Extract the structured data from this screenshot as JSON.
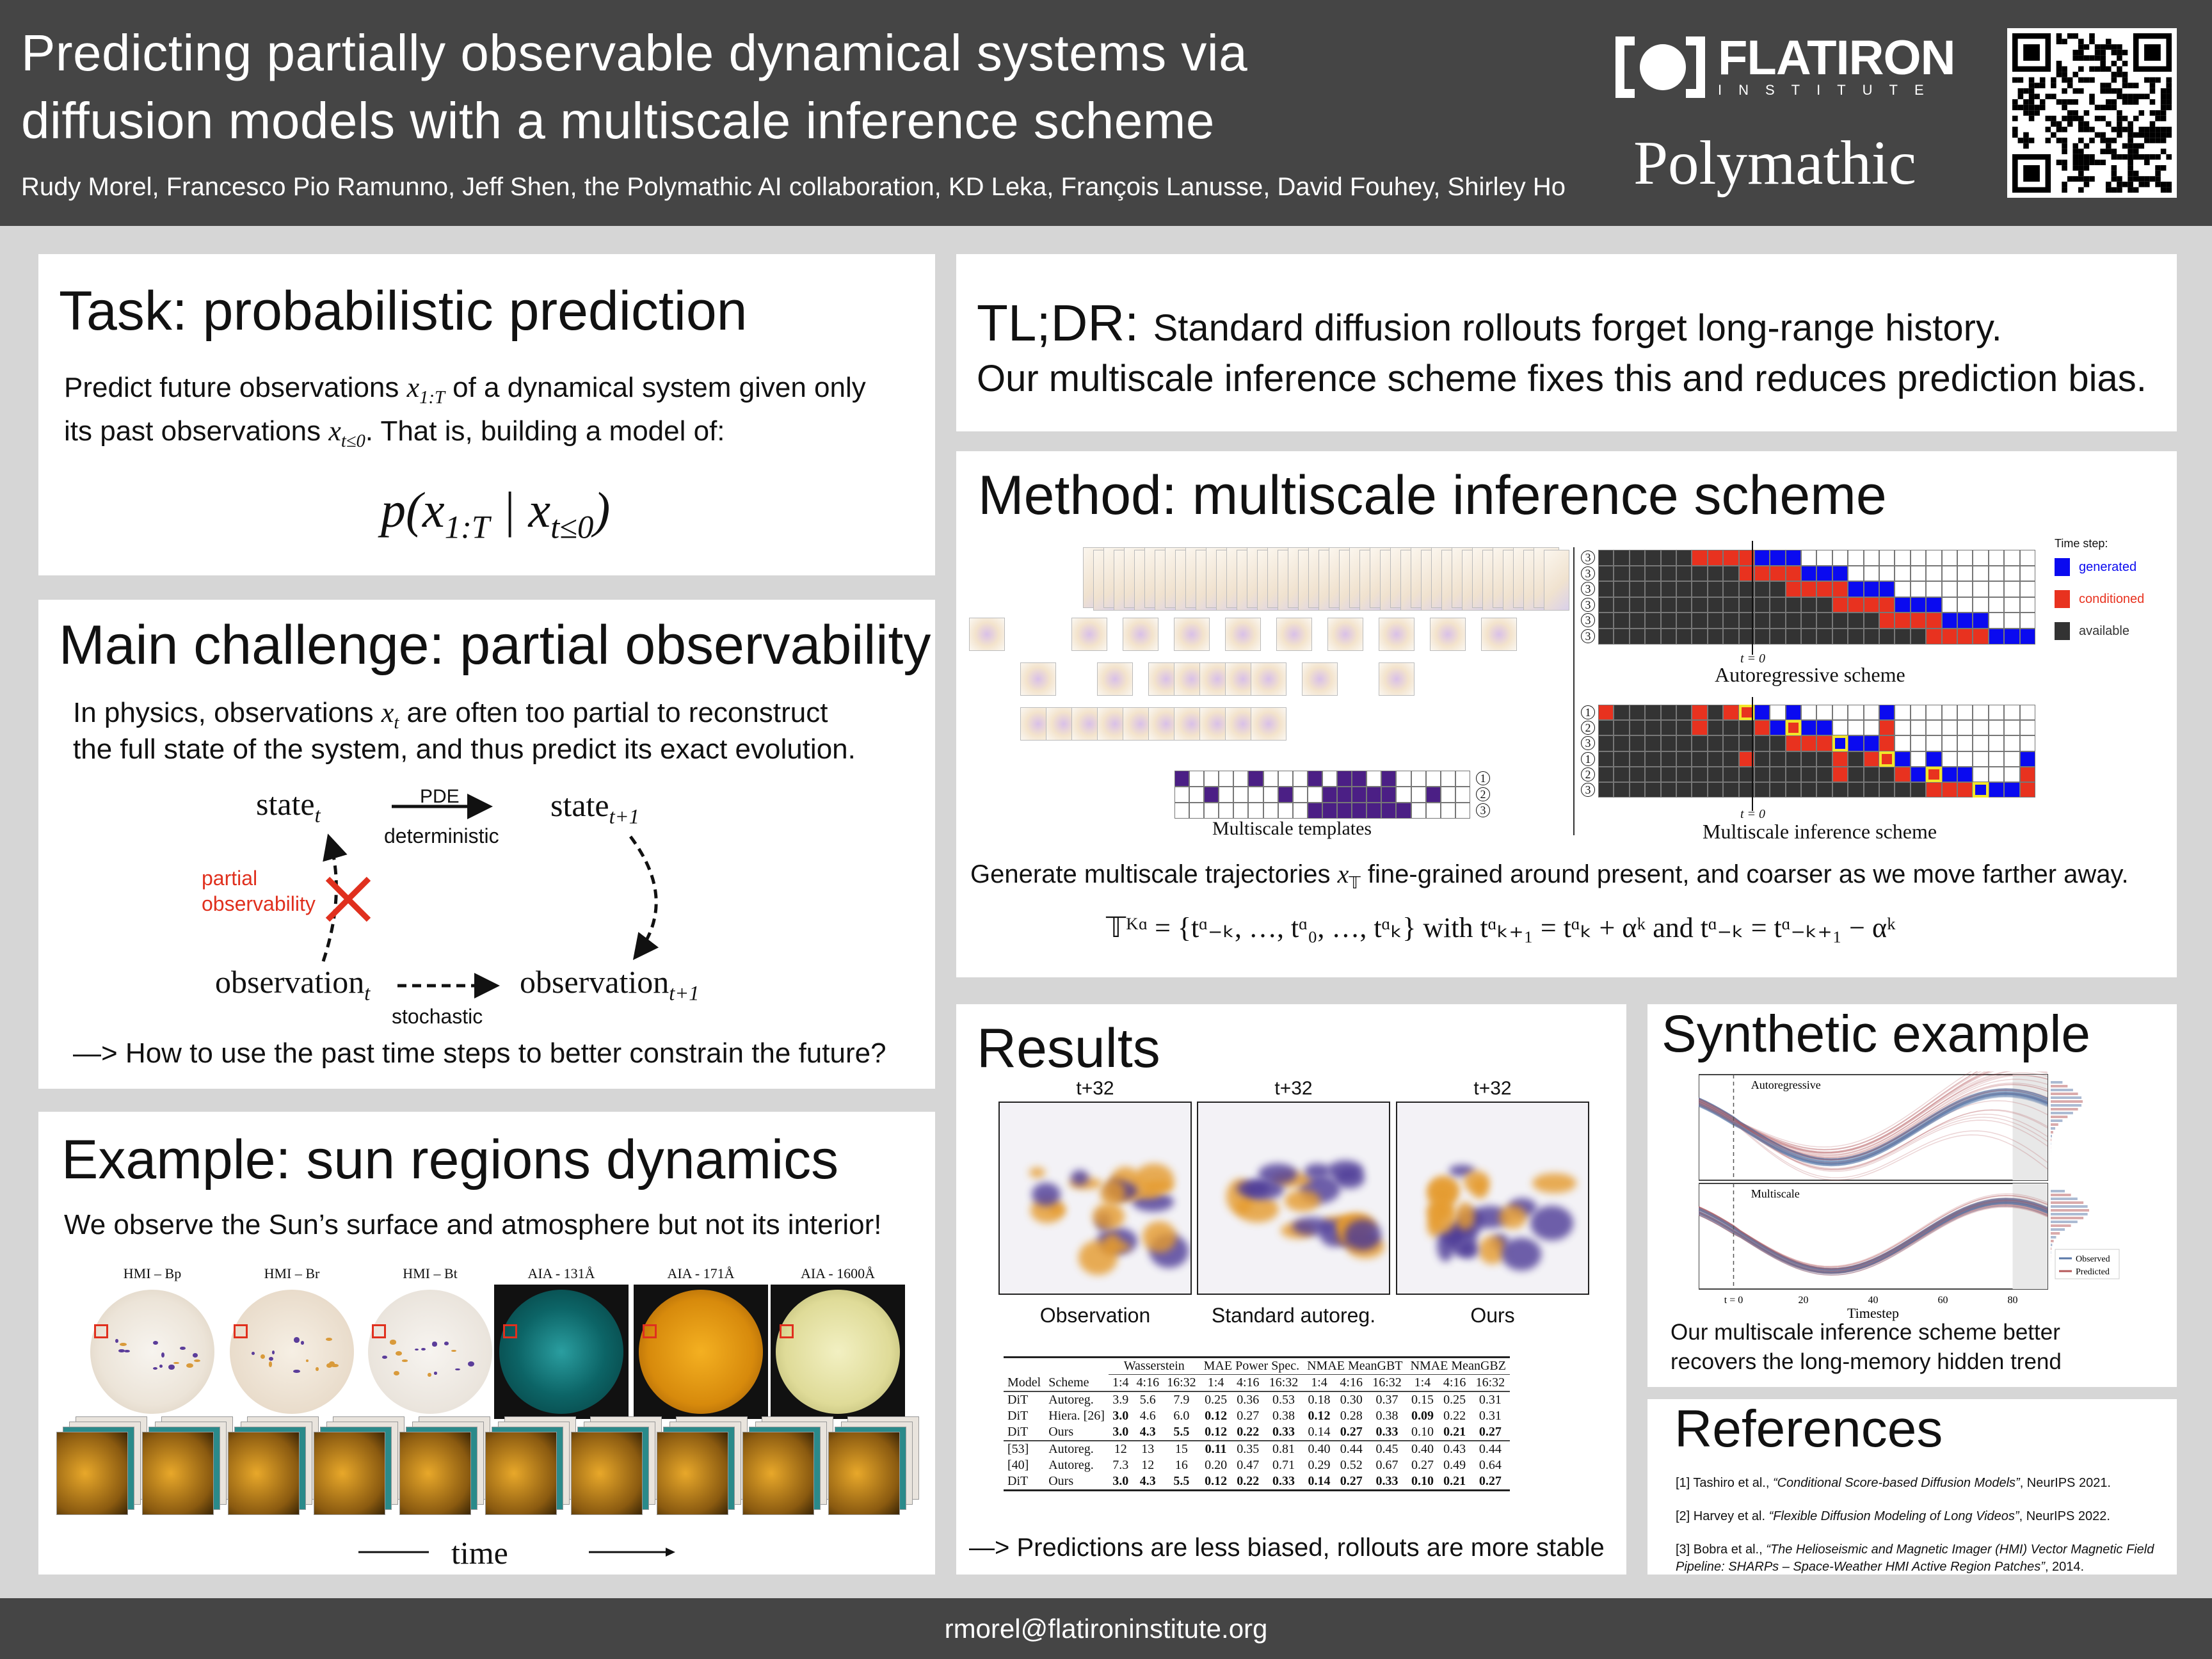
{
  "header": {
    "title_line1": "Predicting partially observable dynamical systems via",
    "title_line2": "diffusion models with a multiscale inference scheme",
    "authors": "Rudy Morel, Francesco Pio Ramunno, Jeff Shen, the Polymathic AI collaboration, KD Leka, François Lanusse, David Fouhey, Shirley Ho",
    "logo_name": "FLATIRON",
    "logo_sub": "INSTITUTE",
    "polymathic": "Polymathic",
    "qr_icon": "qr-code"
  },
  "task": {
    "title": "Task: probabilistic prediction",
    "line1_a": "Predict future observations ",
    "line1_var": "x",
    "line1_sub": "1:T",
    "line1_b": " of a dynamical system given only",
    "line2_a": "its past observations ",
    "line2_var": "x",
    "line2_sub": "t≤0",
    "line2_b": ". That is, building a model of:",
    "formula_a": "p(x",
    "formula_sub1": "1:T",
    "formula_b": " | x",
    "formula_sub2": "t≤0",
    "formula_c": ")"
  },
  "challenge": {
    "title": "Main challenge: partial observability",
    "line1_a": "In physics, observations ",
    "line1_var": "x",
    "line1_sub": "t",
    "line1_b": " are often too partial to reconstruct",
    "line2": "the full state of the system, and thus predict its exact evolution.",
    "state_t": "state",
    "state_t_sub": "t",
    "state_t1": "state",
    "state_t1_sub": "t+1",
    "pde": "PDE",
    "deterministic": "deterministic",
    "partial1": "partial",
    "partial2": "observability",
    "obs_t": "observation",
    "obs_t_sub": "t",
    "obs_t1": "observation",
    "obs_t1_sub": "t+1",
    "stochastic": "stochastic",
    "question": "—> How to use the past time steps to better constrain the future?",
    "red": "#e0301e"
  },
  "sun": {
    "title": "Example: sun regions dynamics",
    "subtitle": "We observe the Sun’s surface and atmosphere but not its interior!",
    "images": [
      {
        "label": "HMI – Bp"
      },
      {
        "label": "HMI – Br"
      },
      {
        "label": "HMI – Bt"
      },
      {
        "label": "AIA - 131Å"
      },
      {
        "label": "AIA - 171Å"
      },
      {
        "label": "AIA - 1600Å"
      }
    ],
    "time_label": "time"
  },
  "tldr": {
    "label": "TL;DR:",
    "line1": "Standard diffusion rollouts forget long-range history.",
    "line2": "Our multiscale inference scheme fixes this and reduces prediction bias."
  },
  "method": {
    "title": "Method: multiscale inference scheme",
    "legend_title": "Time step:",
    "legend": [
      {
        "label": "generated",
        "color": "#0a0af0"
      },
      {
        "label": "conditioned",
        "color": "#e8321f"
      },
      {
        "label": "available",
        "color": "#333333"
      }
    ],
    "t0": "t = 0",
    "ar_caption": "Autoregressive scheme",
    "ms_caption": "Multiscale inference scheme",
    "templates_caption": "Multiscale templates",
    "ar_labels": [
      "3",
      "3",
      "3",
      "3",
      "3",
      "3"
    ],
    "ms_labels": [
      "1",
      "2",
      "3",
      "1",
      "2",
      "3"
    ],
    "template_labels": [
      "1",
      "2",
      "3"
    ],
    "ar_grid": [
      "AAAAAACCCCGGGWWWWWWWWWWWWWWW",
      "AAAAAAAAACCCCGGGWWWWWWWWWWWW",
      "AAAAAAAAAAAACCCCGGGWWWWWWWWW",
      "AAAAAAAAAAAAAAACCCCGGGWWWWWW",
      "AAAAAAAAAAAAAAAAAACCCCGGGWWW",
      "AAAAAAAAAAAAAAAAAAAAACCCCGGG"
    ],
    "ms_grid": [
      "CAAAAACACcGWGWWWWWGWWWWWWWWW",
      "AAAAAACAAACGcGGWWWCWWWWWWWWW",
      "AAAAAAAAAAAACCCgGGCWWWWWWWWW",
      "AAAAAAAAACAAAAACACcGWGWWWWWG",
      "AAAAAAAAAAAAAAACAAACGcGGWWWC",
      "AAAAAAAAAAAAAAAAAAAAACCCgGGC"
    ],
    "template_grid": [
      "PWWWWPWWWPWPPWPWWWWW",
      "WWPWWWWPWWPPPPPWWPWW",
      "WWWWWWWWWPPPPPPPWWWW"
    ],
    "description_a": "Generate multiscale trajectories ",
    "description_var": "x",
    "description_sub": "𝕋",
    "description_b": " fine-grained around present, and coarser as we move farther away.",
    "formula": "𝕋ᴷᵅ = {tᵅ₋ₖ, …, tᵅ₀, …, tᵅₖ}  with  tᵅₖ₊₁ = tᵅₖ + αᵏ  and  tᵅ₋ₖ = tᵅ₋ₖ₊₁ − αᵏ"
  },
  "results": {
    "title": "Results",
    "panels": [
      {
        "top": "t+32",
        "caption": "Observation"
      },
      {
        "top": "t+32",
        "caption": "Standard autoreg."
      },
      {
        "top": "t+32",
        "caption": "Ours"
      }
    ],
    "table": {
      "groups": [
        "Wasserstein",
        "MAE Power Spec.",
        "NMAE MeanGBT",
        "NMAE MeanGBZ"
      ],
      "subheaders": [
        "Model",
        "Scheme",
        "1:4",
        "4:16",
        "16:32",
        "1:4",
        "4:16",
        "16:32",
        "1:4",
        "4:16",
        "16:32",
        "1:4",
        "4:16",
        "16:32"
      ],
      "rows": [
        {
          "cells": [
            "DiT",
            "Autoreg.",
            "3.9",
            "5.6",
            "7.9",
            "0.25",
            "0.36",
            "0.53",
            "0.18",
            "0.30",
            "0.37",
            "0.15",
            "0.25",
            "0.31"
          ],
          "bold": []
        },
        {
          "cells": [
            "DiT",
            "Hiera. [26]",
            "3.0",
            "4.6",
            "6.0",
            "0.12",
            "0.27",
            "0.38",
            "0.12",
            "0.28",
            "0.38",
            "0.09",
            "0.22",
            "0.31"
          ],
          "bold": [
            2,
            5,
            8,
            11
          ]
        },
        {
          "cells": [
            "DiT",
            "Ours",
            "3.0",
            "4.3",
            "5.5",
            "0.12",
            "0.22",
            "0.33",
            "0.14",
            "0.27",
            "0.33",
            "0.10",
            "0.21",
            "0.27"
          ],
          "bold": [
            2,
            3,
            4,
            5,
            6,
            7,
            9,
            10,
            12,
            13
          ]
        },
        {
          "cells": [
            "[53]",
            "Autoreg.",
            "12",
            "13",
            "15",
            "0.11",
            "0.35",
            "0.81",
            "0.40",
            "0.44",
            "0.45",
            "0.40",
            "0.43",
            "0.44"
          ],
          "bold": [
            5
          ]
        },
        {
          "cells": [
            "[40]",
            "Autoreg.",
            "7.3",
            "12",
            "16",
            "0.20",
            "0.47",
            "0.71",
            "0.29",
            "0.52",
            "0.67",
            "0.27",
            "0.49",
            "0.64"
          ],
          "bold": []
        },
        {
          "cells": [
            "DiT",
            "Ours",
            "3.0",
            "4.3",
            "5.5",
            "0.12",
            "0.22",
            "0.33",
            "0.14",
            "0.27",
            "0.33",
            "0.10",
            "0.21",
            "0.27"
          ],
          "bold": [
            2,
            3,
            4,
            5,
            6,
            7,
            8,
            9,
            10,
            11,
            12,
            13
          ]
        }
      ]
    },
    "conclusion": "—> Predictions are less biased, rollouts are more stable"
  },
  "synthetic": {
    "title": "Synthetic example",
    "panel_labels": [
      "Autoregressive",
      "Multiscale"
    ],
    "xticks": [
      "t = 0",
      "20",
      "40",
      "60",
      "80"
    ],
    "xlabel": "Timestep",
    "legend": [
      {
        "label": "Observed",
        "color": "#5a78a8"
      },
      {
        "label": "Predicted",
        "color": "#b5585a"
      }
    ],
    "caption1": "Our multiscale inference scheme better",
    "caption2": "recovers the long-memory hidden trend"
  },
  "references": {
    "title": "References",
    "items": [
      {
        "a": "[1] Tashiro et al., ",
        "i": "“Conditional Score-based Diffusion Models”",
        "b": ", NeurIPS 2021."
      },
      {
        "a": "[2] Harvey et al. ",
        "i": "“Flexible Diffusion Modeling of Long Videos”",
        "b": ", NeurIPS 2022."
      },
      {
        "a": "[3] Bobra et al., ",
        "i": "“The Helioseismic and Magnetic Imager (HMI) Vector Magnetic Field Pipeline: SHARPs – Space-Weather HMI Active Region Patches”",
        "b": ", 2014."
      }
    ]
  },
  "footer": {
    "email": "rmorel@flatironinstitute.org"
  }
}
